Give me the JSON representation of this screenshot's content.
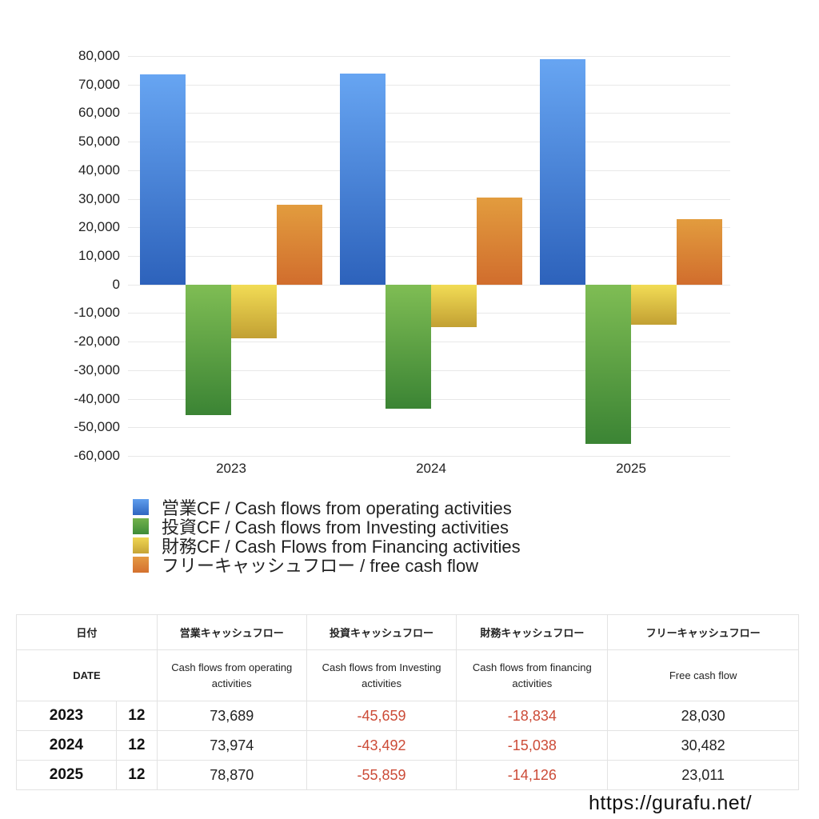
{
  "chart_data": {
    "type": "bar",
    "title": "",
    "xlabel": "",
    "ylabel": "",
    "categories": [
      "2023",
      "2024",
      "2025"
    ],
    "series": [
      {
        "name": "営業CF / Cash flows from operating activities",
        "values": [
          73689,
          73974,
          78870
        ],
        "color": "#4a86dd"
      },
      {
        "name": "投資CF / Cash flows from Investing activities",
        "values": [
          -45659,
          -43492,
          -55859
        ],
        "color": "#5ca044"
      },
      {
        "name": "財務CF / Cash Flows from Financing activities",
        "values": [
          -18834,
          -15038,
          -14126
        ],
        "color": "#dcc048"
      },
      {
        "name": "フリーキャッシュフロー / free cash flow",
        "values": [
          28030,
          30482,
          23011
        ],
        "color": "#dc8236"
      }
    ],
    "ylim": [
      -60000,
      80000
    ],
    "yticks": [
      "80,000",
      "70,000",
      "60,000",
      "50,000",
      "40,000",
      "30,000",
      "20,000",
      "10,000",
      "0",
      "-10,000",
      "-20,000",
      "-30,000",
      "-40,000",
      "-50,000",
      "-60,000"
    ],
    "grid": true,
    "legend_position": "bottom"
  },
  "legend": {
    "items": [
      "営業CF / Cash flows from operating activities",
      "投資CF / Cash flows from Investing activities",
      "財務CF / Cash Flows from Financing activities",
      "フリーキャッシュフロー / free cash flow"
    ]
  },
  "table": {
    "header_jp": [
      "日付",
      "営業キャッシュフロー",
      "投資キャッシュフロー",
      "財務キャッシュフロー",
      "フリーキャッシュフロー"
    ],
    "header_en": [
      "DATE",
      "Cash flows from operating activities",
      "Cash flows from Investing activities",
      "Cash flows from financing activities",
      "Free cash flow"
    ],
    "rows": [
      {
        "year": "2023",
        "month": "12",
        "operating": "73,689",
        "investing": "-45,659",
        "financing": "-18,834",
        "free": "28,030"
      },
      {
        "year": "2024",
        "month": "12",
        "operating": "73,974",
        "investing": "-43,492",
        "financing": "-15,038",
        "free": "30,482"
      },
      {
        "year": "2025",
        "month": "12",
        "operating": "78,870",
        "investing": "-55,859",
        "financing": "-14,126",
        "free": "23,011"
      }
    ]
  },
  "footer": {
    "url_text": "https://gurafu.net/"
  }
}
